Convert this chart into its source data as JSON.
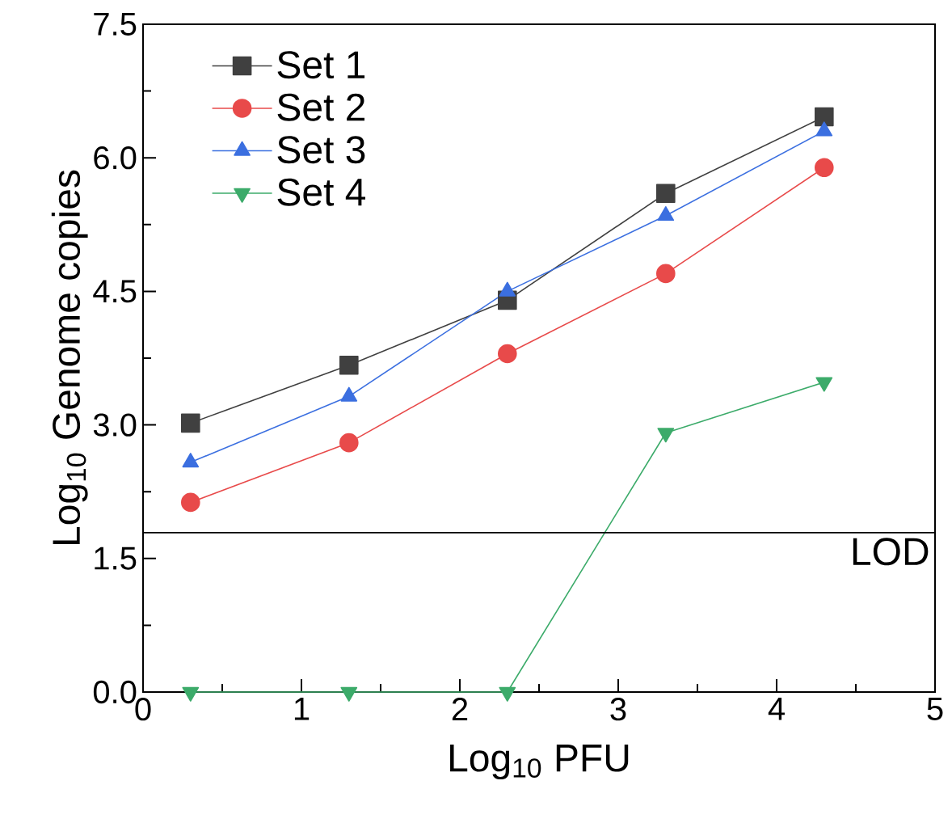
{
  "chart_data": {
    "type": "line",
    "xlabel": "Log$_{10}$ PFU",
    "ylabel": "Log$_{10}$ Genome copies",
    "x": [
      0.3,
      1.3,
      2.3,
      3.3,
      4.3
    ],
    "series": [
      {
        "name": "Set 1",
        "color": "#404040",
        "marker": "square",
        "values": [
          3.02,
          3.67,
          4.4,
          5.6,
          6.46
        ]
      },
      {
        "name": "Set 2",
        "color": "#e84a4a",
        "marker": "circle",
        "values": [
          2.13,
          2.8,
          3.8,
          4.7,
          5.89
        ]
      },
      {
        "name": "Set 3",
        "color": "#3b6fe0",
        "marker": "triangle",
        "values": [
          2.58,
          3.32,
          4.5,
          5.35,
          6.3
        ]
      },
      {
        "name": "Set 4",
        "color": "#3cab6a",
        "marker": "triangle-down",
        "values": [
          0,
          0,
          0,
          2.91,
          3.48
        ]
      }
    ],
    "xlim": [
      0,
      5
    ],
    "ylim": [
      0,
      7.5
    ],
    "xticks": [
      0,
      1,
      2,
      3,
      4,
      5
    ],
    "yticks": [
      {
        "value": 0,
        "label": "0.0"
      },
      {
        "value": 1.5,
        "label": "1.5"
      },
      {
        "value": 3,
        "label": "3.0"
      },
      {
        "value": 4.5,
        "label": "4.5"
      },
      {
        "value": 6,
        "label": "6.0"
      },
      {
        "value": 7.5,
        "label": "7.5"
      }
    ],
    "ref_lines": [
      {
        "axis": "y",
        "value": 1.79,
        "label": "LOD",
        "color": "#000000"
      }
    ],
    "legend": "top left",
    "grid": false,
    "line_style": "solid"
  }
}
